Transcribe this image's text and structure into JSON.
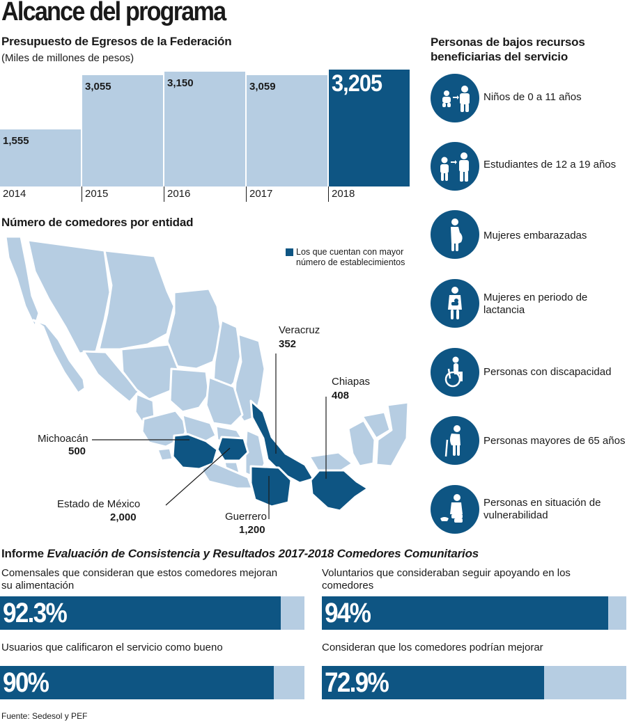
{
  "title": "Alcance del programa",
  "colors": {
    "dark": "#0e5583",
    "light": "#b6cde2"
  },
  "chart_data": [
    {
      "type": "bar",
      "title": "Presupuesto de Egresos de la Federación",
      "subtitle": "(Miles de millones de pesos)",
      "categories": [
        "2014",
        "2015",
        "2016",
        "2017",
        "2018"
      ],
      "values": [
        1555,
        3055,
        3150,
        3059,
        3205
      ],
      "value_labels": [
        "1,555",
        "3,055",
        "3,150",
        "3,059",
        "3,205"
      ],
      "highlight": "2018",
      "ylim": [
        0,
        3205
      ]
    },
    {
      "type": "bar",
      "title": "Informe Evaluación de Consistencia y Resultados 2017-2018 Comedores Comunitarios",
      "title_plain": "Informe ",
      "title_italic": "Evaluación de Consistencia y Resultados 2017-2018 Comedores Comunitarios",
      "orientation": "horizontal",
      "unit": "%",
      "ylim": [
        0,
        100
      ],
      "items": [
        {
          "label": "Comensales que consideran que estos comedores mejoran su alimentación",
          "value": 92.3,
          "value_label": "92.3%"
        },
        {
          "label": "Voluntarios que consideraban seguir apoyando en los comedores",
          "value": 94,
          "value_label": "94%"
        },
        {
          "label": "Usuarios que calificaron el servicio como bueno",
          "value": 90,
          "value_label": "90%"
        },
        {
          "label": "Consideran que los comedores podrían mejorar",
          "value": 72.9,
          "value_label": "72.9%"
        }
      ]
    }
  ],
  "beneficiaries": {
    "title": "Personas de bajos recursos beneficiarias del servicio",
    "items": [
      {
        "icon": "children-icon",
        "label": "Niños de 0 a 11 años"
      },
      {
        "icon": "students-icon",
        "label": "Estudiantes de 12 a 19 años"
      },
      {
        "icon": "pregnant-woman-icon",
        "label": "Mujeres embarazadas"
      },
      {
        "icon": "breastfeeding-woman-icon",
        "label": "Mujeres en periodo de lactancia"
      },
      {
        "icon": "wheelchair-icon",
        "label": "Personas con discapacidad"
      },
      {
        "icon": "elderly-person-icon",
        "label": "Personas mayores de 65 años"
      },
      {
        "icon": "vulnerable-person-icon",
        "label": "Personas en situación de vulnerabilidad"
      }
    ]
  },
  "map": {
    "title": "Número de comedores por entidad",
    "legend": "Los que cuentan con mayor número de establecimientos",
    "states": [
      {
        "name": "Veracruz",
        "value": "352"
      },
      {
        "name": "Chiapas",
        "value": "408"
      },
      {
        "name": "Michoacán",
        "value": "500"
      },
      {
        "name": "Estado de México",
        "value": "2,000"
      },
      {
        "name": "Guerrero",
        "value": "1,200"
      }
    ]
  },
  "source": "Fuente: Sedesol y PEF"
}
